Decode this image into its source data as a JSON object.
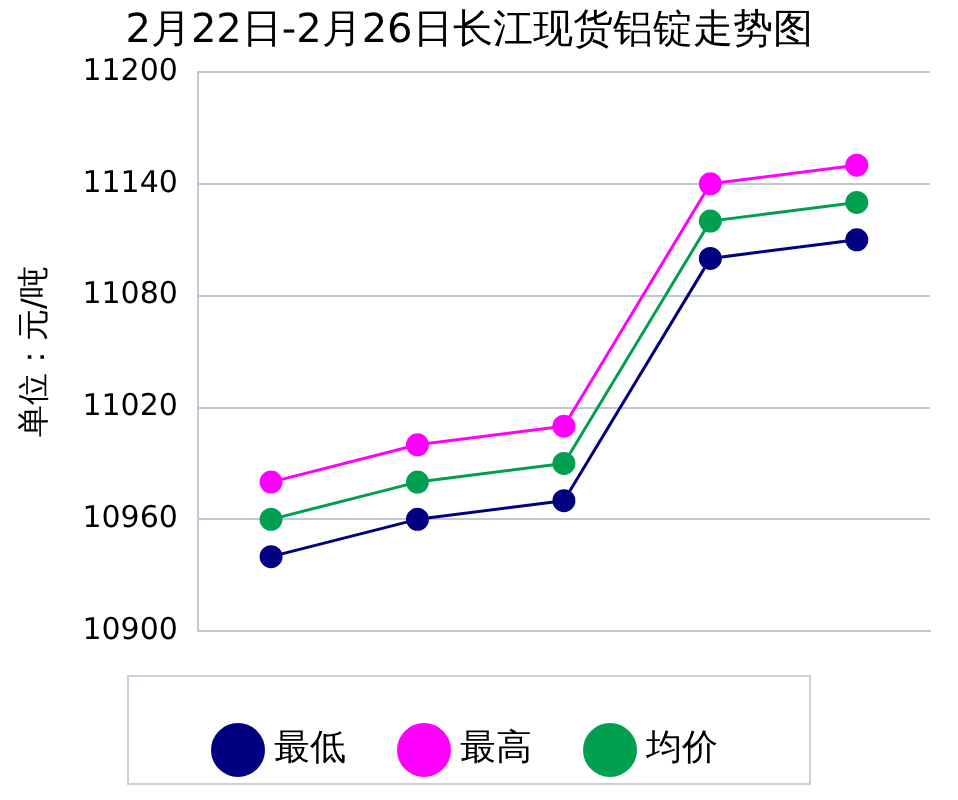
{
  "chart_data": {
    "type": "line",
    "title": "2月22日-2月26日长江现货铝锭走势图",
    "ylabel": "单位：元/吨",
    "categories": [
      null,
      null,
      null,
      null,
      null
    ],
    "series": [
      {
        "name": "最低",
        "color": "#000080",
        "values": [
          10940,
          10960,
          10970,
          11100,
          11110
        ]
      },
      {
        "name": "最高",
        "color": "#ff00ff",
        "values": [
          10980,
          11000,
          11010,
          11140,
          11150
        ]
      },
      {
        "name": "均价",
        "color": "#00a050",
        "values": [
          10960,
          10980,
          10990,
          11120,
          11130
        ]
      }
    ],
    "ylim": [
      10900,
      11200
    ],
    "yticks": [
      10900,
      10960,
      11020,
      11080,
      11140,
      11200
    ],
    "grid": "y",
    "legend": "bottom",
    "marker": "circle",
    "line_style": "solid"
  }
}
